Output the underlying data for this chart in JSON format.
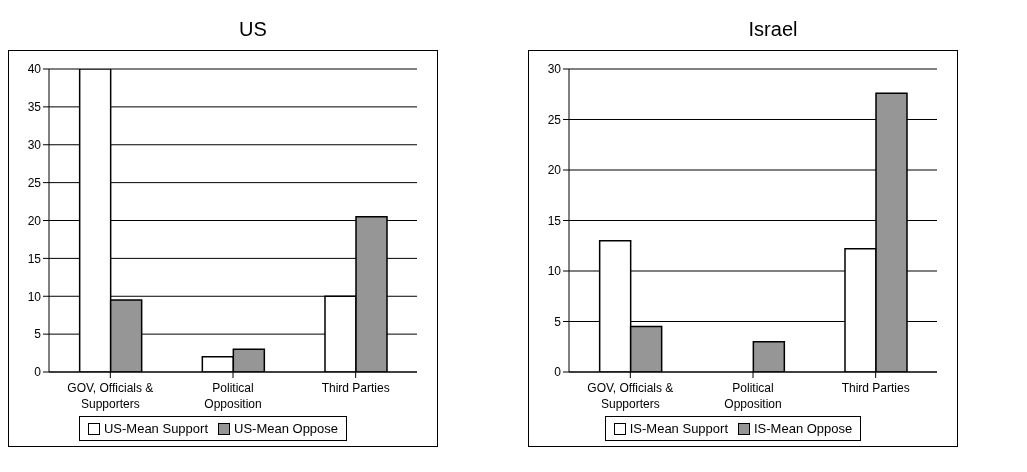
{
  "chart_data": [
    {
      "type": "bar",
      "title": "US",
      "categories": [
        "GOV, Officials & Supporters",
        "Political Opposition",
        "Third Parties"
      ],
      "series": [
        {
          "name": "US-Mean Support",
          "color": "#ffffff",
          "values": [
            40,
            2,
            10
          ]
        },
        {
          "name": "US-Mean Oppose",
          "color": "#969696",
          "values": [
            9.5,
            3,
            20.5
          ]
        }
      ],
      "ylim": [
        0,
        40
      ],
      "yticks": [
        0,
        5,
        10,
        15,
        20,
        25,
        30,
        35,
        40
      ],
      "grid": "y",
      "legend": "bottom"
    },
    {
      "type": "bar",
      "title": "Israel",
      "categories": [
        "GOV, Officials & Supporters",
        "Political Opposition",
        "Third Parties"
      ],
      "series": [
        {
          "name": "IS-Mean Support",
          "color": "#ffffff",
          "values": [
            13,
            0,
            12.2
          ]
        },
        {
          "name": "IS-Mean Oppose",
          "color": "#969696",
          "values": [
            4.5,
            3,
            27.6
          ]
        }
      ],
      "ylim": [
        0,
        30
      ],
      "yticks": [
        0,
        5,
        10,
        15,
        20,
        25,
        30
      ],
      "grid": "y",
      "legend": "bottom"
    }
  ]
}
